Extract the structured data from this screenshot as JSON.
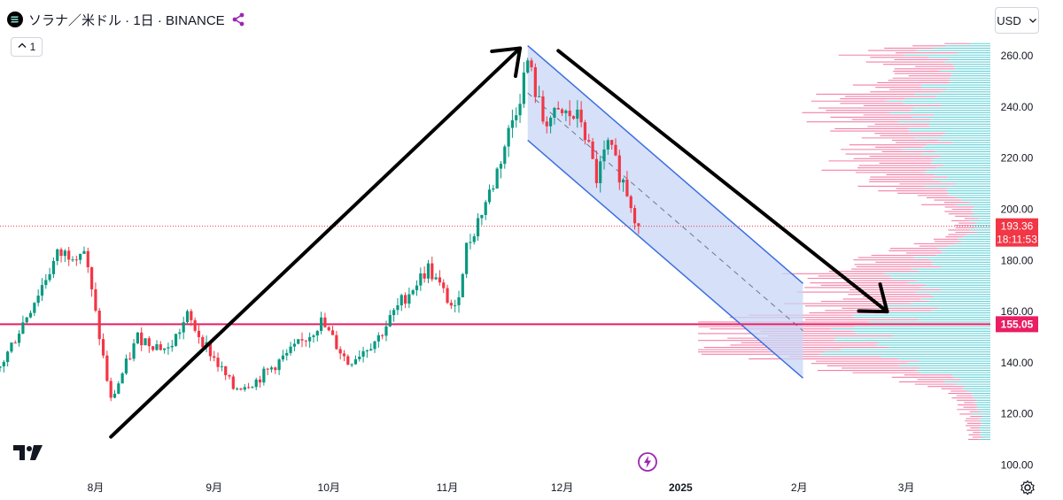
{
  "header": {
    "symbol_title": "ソラナ／米ドル · 1日 · BINANCE",
    "indicator_count": "1",
    "currency": "USD"
  },
  "icons": {
    "logo": "solana-logo-icon",
    "share": "share-icon",
    "chevron": "chevron-down-icon",
    "settings": "gear-icon",
    "bolt": "lightning-icon",
    "brand": "tradingview-logo-icon"
  },
  "colors": {
    "up": "#089981",
    "down": "#f23645",
    "support_line": "#e91e63",
    "channel_fill": "#c8d6f7",
    "channel_line": "#3b6fe0",
    "volume_up": "#4cc9d0",
    "volume_down": "#f06a9a",
    "last_price_label": "#f23645",
    "level_label": "#e91e63"
  },
  "chart_data": {
    "type": "candlestick",
    "title": "ソラナ／米ドル · 1日 · BINANCE",
    "ylim": [
      96,
      268
    ],
    "yticks": [
      100,
      120,
      140,
      160,
      180,
      200,
      220,
      240,
      260
    ],
    "ytick_labels": [
      "100.00",
      "120.00",
      "140.00",
      "160.00",
      "180.00",
      "200.00",
      "220.00",
      "240.00",
      "260.00"
    ],
    "xticks": [
      {
        "date": "2024-08-01",
        "label": "8月"
      },
      {
        "date": "2024-09-01",
        "label": "9月"
      },
      {
        "date": "2024-10-01",
        "label": "10月"
      },
      {
        "date": "2024-11-01",
        "label": "11月"
      },
      {
        "date": "2024-12-01",
        "label": "12月"
      },
      {
        "date": "2025-01-01",
        "label": "2025"
      },
      {
        "date": "2025-02-01",
        "label": "2月"
      },
      {
        "date": "2025-03-01",
        "label": "3月"
      }
    ],
    "x_range": [
      "2024-07-07",
      "2025-03-23"
    ],
    "grid": false,
    "last_price": {
      "value": 193.36,
      "label": "193.36",
      "countdown": "18:11:53"
    },
    "horizontal_level": {
      "value": 155.05,
      "label": "155.05"
    },
    "key_points": [
      {
        "date": "2024-07-07",
        "close": 138
      },
      {
        "date": "2024-07-22",
        "close": 182
      },
      {
        "date": "2024-07-29",
        "close": 184
      },
      {
        "date": "2024-08-05",
        "close": 125
      },
      {
        "date": "2024-08-12",
        "close": 150
      },
      {
        "date": "2024-08-20",
        "close": 145
      },
      {
        "date": "2024-08-25",
        "close": 158
      },
      {
        "date": "2024-09-06",
        "close": 130
      },
      {
        "date": "2024-09-12",
        "close": 133
      },
      {
        "date": "2024-09-24",
        "close": 148
      },
      {
        "date": "2024-09-29",
        "close": 156
      },
      {
        "date": "2024-10-06",
        "close": 140
      },
      {
        "date": "2024-10-14",
        "close": 150
      },
      {
        "date": "2024-10-20",
        "close": 164
      },
      {
        "date": "2024-10-27",
        "close": 177
      },
      {
        "date": "2024-11-03",
        "close": 160
      },
      {
        "date": "2024-11-06",
        "close": 185
      },
      {
        "date": "2024-11-13",
        "close": 210
      },
      {
        "date": "2024-11-20",
        "close": 245
      },
      {
        "date": "2024-11-22",
        "close": 258
      },
      {
        "date": "2024-11-26",
        "close": 235
      },
      {
        "date": "2024-12-02",
        "close": 237
      },
      {
        "date": "2024-12-06",
        "close": 235
      },
      {
        "date": "2024-12-10",
        "close": 212
      },
      {
        "date": "2024-12-13",
        "close": 225
      },
      {
        "date": "2024-12-18",
        "close": 207
      },
      {
        "date": "2024-12-21",
        "close": 193.36
      }
    ],
    "channel": {
      "upper": [
        {
          "date": "2024-11-22",
          "value": 264
        },
        {
          "date": "2025-02-02",
          "value": 171
        }
      ],
      "lower": [
        {
          "date": "2024-11-22",
          "value": 227
        },
        {
          "date": "2025-02-02",
          "value": 134
        }
      ]
    },
    "arrows": [
      {
        "from": {
          "date": "2024-08-05",
          "value": 111
        },
        "to": {
          "date": "2024-11-20",
          "value": 263
        }
      },
      {
        "from": {
          "date": "2024-11-30",
          "value": 262
        },
        "to": {
          "date": "2025-02-24",
          "value": 160
        }
      }
    ]
  }
}
